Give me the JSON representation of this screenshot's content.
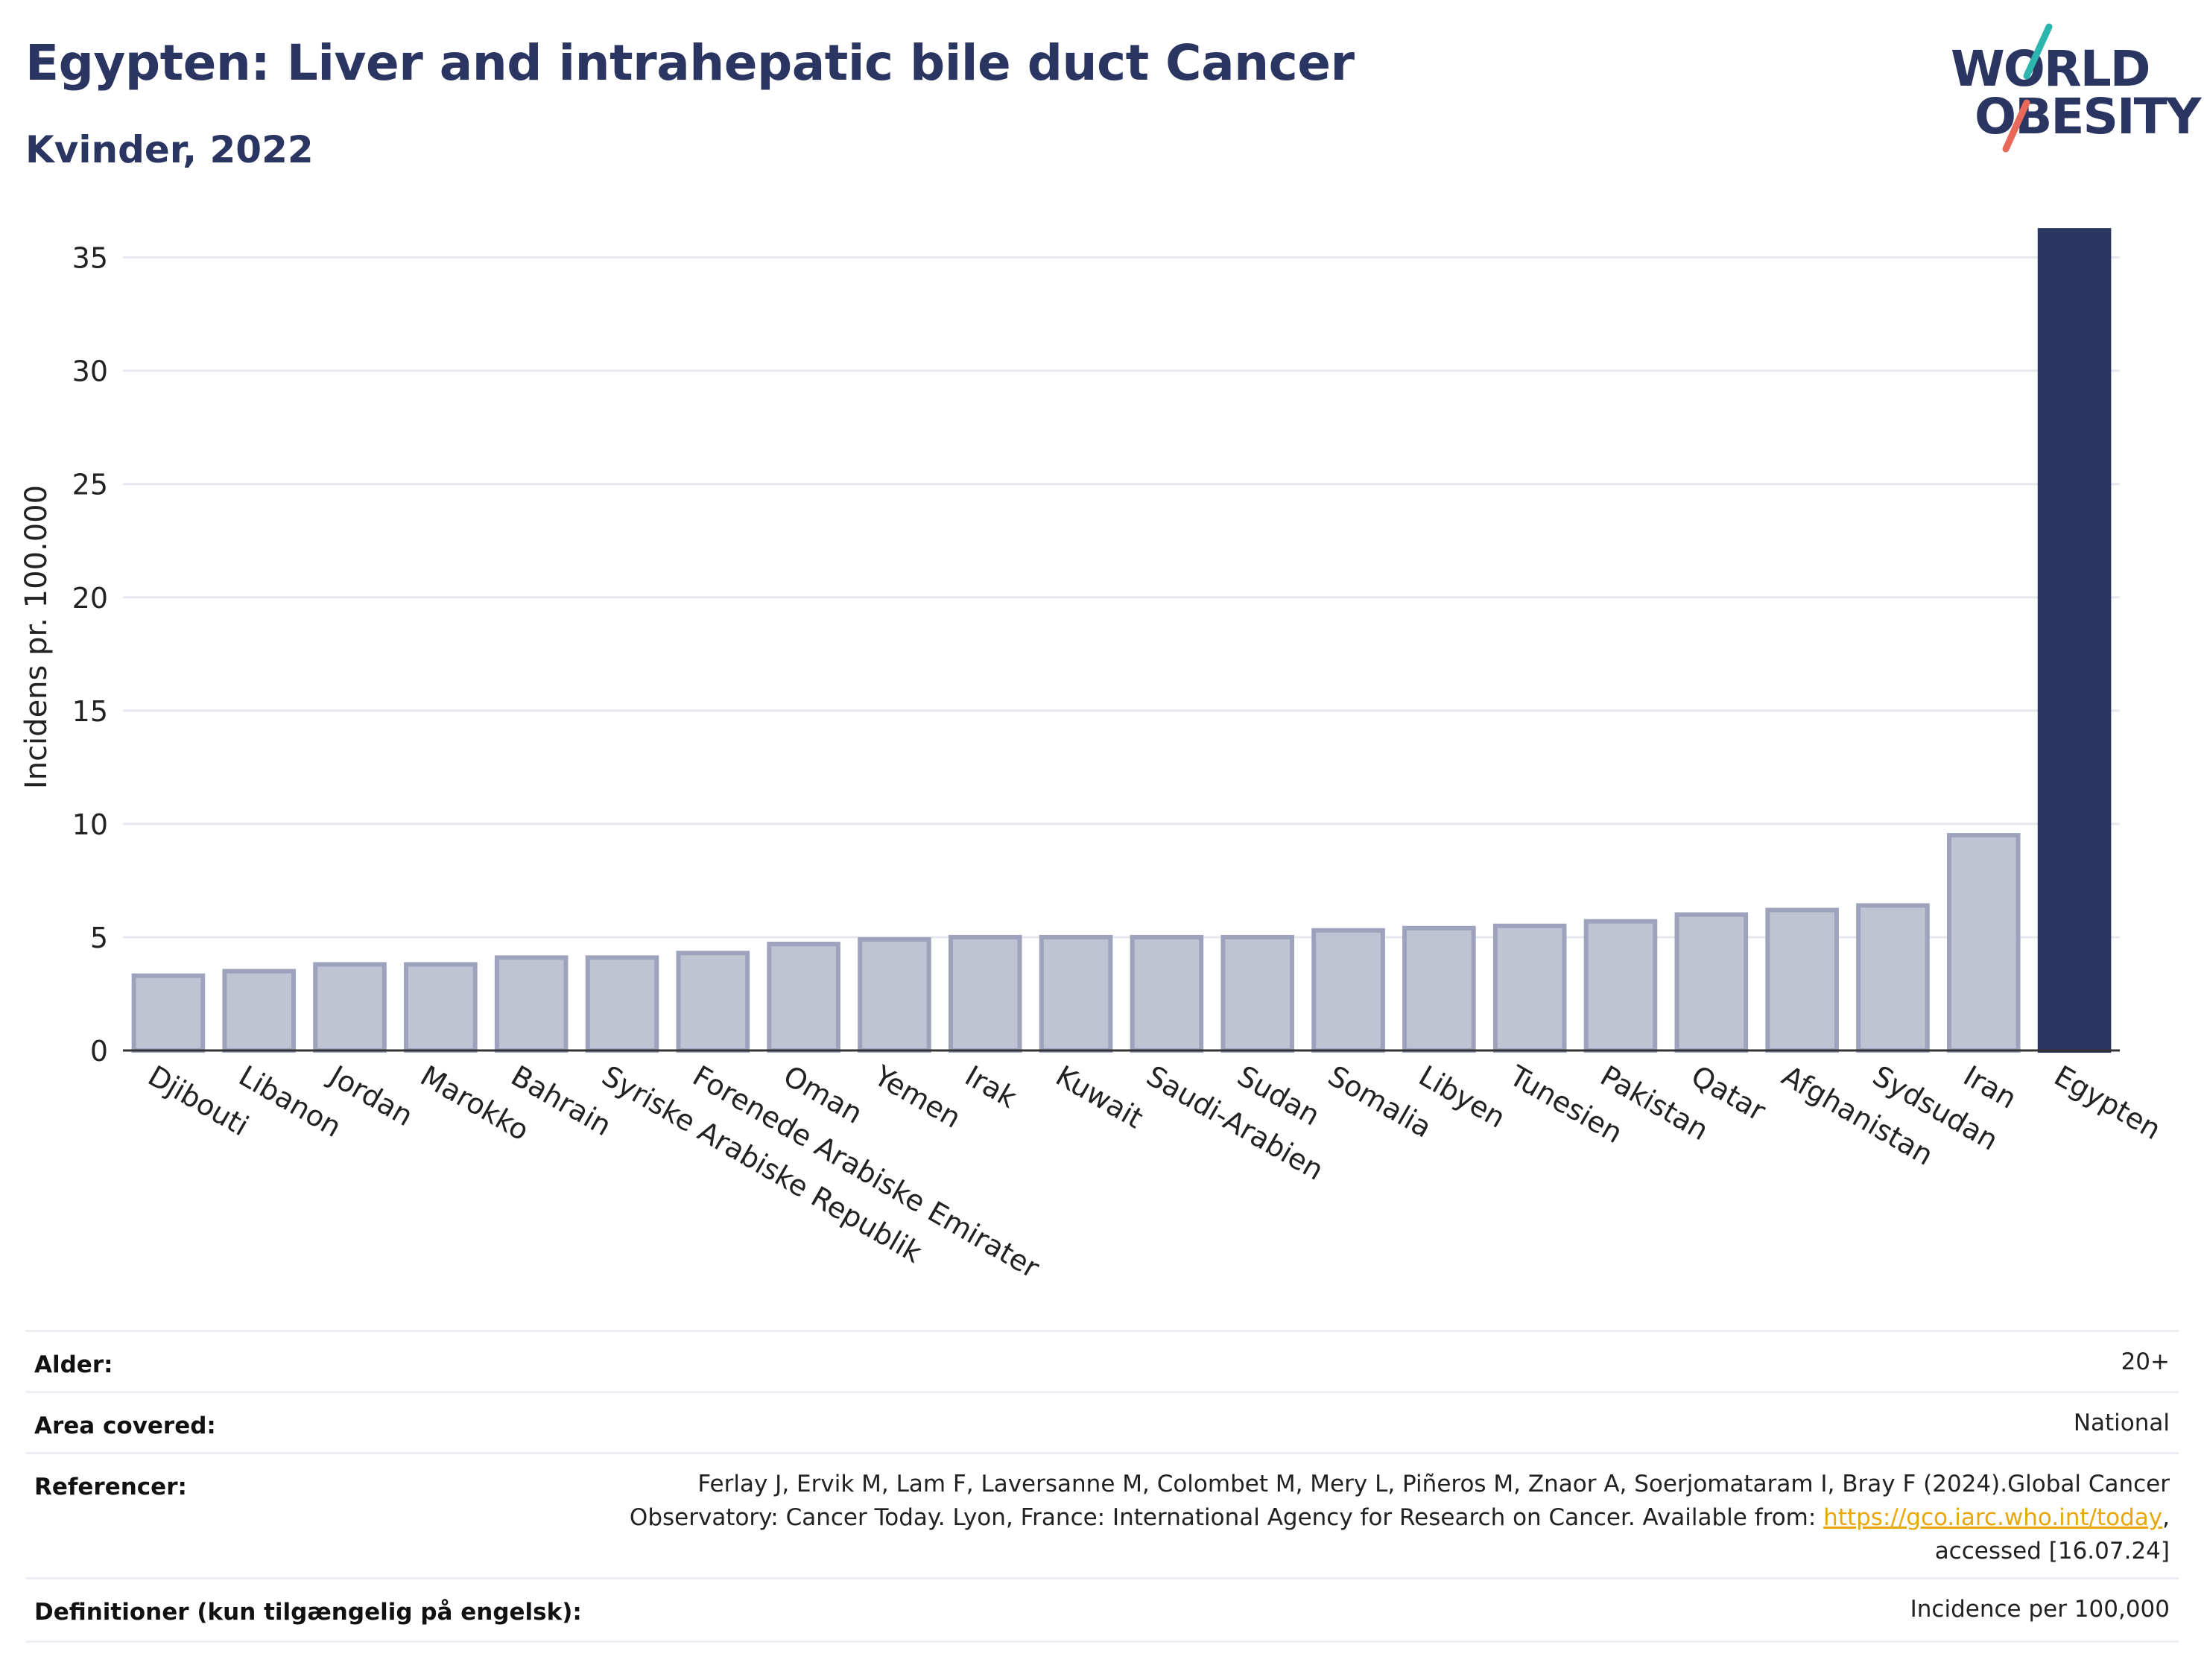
{
  "header": {
    "title": "Egypten: Liver and intrahepatic bile duct Cancer",
    "subtitle": "Kvinder, 2022"
  },
  "logo": {
    "line1": "WORLD",
    "line2": "OBESITY",
    "text_color": "#2a3562",
    "accent_teal": "#2bb5ae",
    "accent_coral": "#e8695a"
  },
  "colors": {
    "highlight_bar": "#2a3562",
    "other_bar_fill": "#bfc3d2",
    "other_bar_stroke": "#9ea3bd"
  },
  "chart_data": {
    "type": "bar",
    "title": "",
    "xlabel": "",
    "ylabel": "Incidens pr. 100.000",
    "ylim": [
      0,
      36.5
    ],
    "yticks": [
      0,
      5,
      10,
      15,
      20,
      25,
      30,
      35
    ],
    "grid": true,
    "highlight": "Egypten",
    "categories": [
      "Djibouti",
      "Libanon",
      "Jordan",
      "Marokko",
      "Bahrain",
      "Syriske Arabiske Republik",
      "Forenede Arabiske Emirater",
      "Oman",
      "Yemen",
      "Irak",
      "Kuwait",
      "Saudi-Arabien",
      "Sudan",
      "Somalia",
      "Libyen",
      "Tunesien",
      "Pakistan",
      "Qatar",
      "Afghanistan",
      "Sydsudan",
      "Iran",
      "Egypten"
    ],
    "values": [
      3.3,
      3.5,
      3.8,
      3.8,
      4.1,
      4.1,
      4.3,
      4.7,
      4.9,
      5.0,
      5.0,
      5.0,
      5.0,
      5.3,
      5.4,
      5.5,
      5.7,
      6.0,
      6.2,
      6.4,
      9.5,
      36.2
    ]
  },
  "meta": {
    "age_label": "Alder:",
    "age_value": "20+",
    "area_label": "Area covered:",
    "area_value": "National",
    "ref_label": "Referencer:",
    "ref_line1": "Ferlay J, Ervik M, Lam F, Laversanne M, Colombet M, Mery L, Piñeros M, Znaor A, Soerjomataram I, Bray F (2024).Global Cancer",
    "ref_line2_prefix": "Observatory: Cancer Today. Lyon, France: International Agency for Research on Cancer. Available from: ",
    "ref_link": "https://gco.iarc.who.int/today",
    "ref_line2_suffix": ",",
    "ref_line3": "accessed [16.07.24]",
    "def_label": "Definitioner (kun tilgængelig på engelsk):",
    "def_value": "Incidence per 100,000"
  }
}
